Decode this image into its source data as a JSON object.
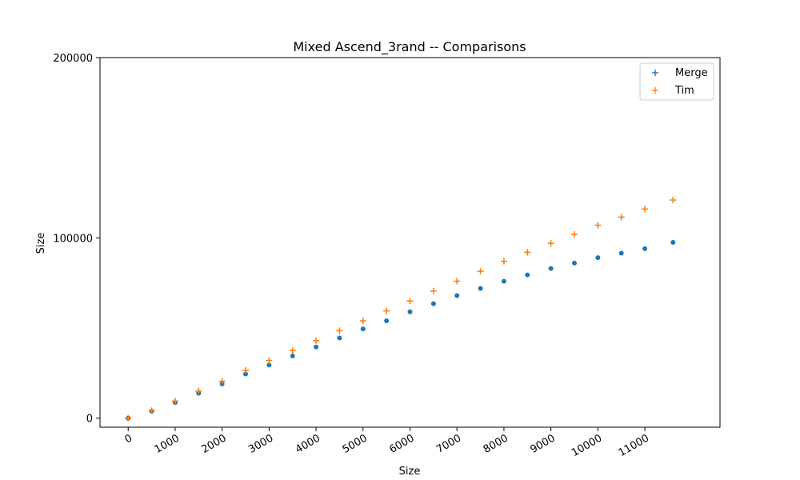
{
  "chart_data": {
    "type": "scatter",
    "title": "Mixed Ascend_3rand -- Comparisons",
    "xlabel": "Size",
    "ylabel": "Size",
    "xlim": [
      -600,
      12600
    ],
    "ylim": [
      -5000,
      200000
    ],
    "x_ticks": [
      0,
      1000,
      2000,
      3000,
      4000,
      5000,
      6000,
      7000,
      8000,
      9000,
      10000,
      11000
    ],
    "x_tick_labels": [
      "0",
      "1000",
      "2000",
      "3000",
      "4000",
      "5000",
      "6000",
      "7000",
      "8000",
      "9000",
      "10000",
      "11000"
    ],
    "y_ticks": [
      0,
      100000,
      200000
    ],
    "y_tick_labels": [
      "0",
      "100000",
      "200000"
    ],
    "grid": false,
    "legend_position": "top-right",
    "series": [
      {
        "name": "Merge",
        "marker": "dot",
        "color": "#1f77b4",
        "points": [
          [
            0,
            0
          ],
          [
            500,
            3900
          ],
          [
            1000,
            8700
          ],
          [
            1500,
            13800
          ],
          [
            2000,
            19000
          ],
          [
            2500,
            24500
          ],
          [
            3000,
            29500
          ],
          [
            3500,
            34500
          ],
          [
            4000,
            39500
          ],
          [
            4500,
            44500
          ],
          [
            5000,
            49500
          ],
          [
            5500,
            54000
          ],
          [
            6000,
            59000
          ],
          [
            6500,
            63500
          ],
          [
            7000,
            68000
          ],
          [
            7500,
            72000
          ],
          [
            8000,
            76000
          ],
          [
            8500,
            79500
          ],
          [
            9000,
            83000
          ],
          [
            9500,
            86000
          ],
          [
            10000,
            89000
          ],
          [
            10500,
            91500
          ],
          [
            11000,
            94000
          ],
          [
            11600,
            97500
          ]
        ]
      },
      {
        "name": "Tim",
        "marker": "plus",
        "color": "#ff7f0e",
        "points": [
          [
            0,
            0
          ],
          [
            500,
            4200
          ],
          [
            1000,
            9500
          ],
          [
            1500,
            15000
          ],
          [
            2000,
            20500
          ],
          [
            2500,
            26500
          ],
          [
            3000,
            32000
          ],
          [
            3500,
            37500
          ],
          [
            4000,
            43000
          ],
          [
            4500,
            48500
          ],
          [
            5000,
            54000
          ],
          [
            5500,
            59500
          ],
          [
            6000,
            65000
          ],
          [
            6500,
            70500
          ],
          [
            7000,
            76000
          ],
          [
            7500,
            81500
          ],
          [
            8000,
            87000
          ],
          [
            8500,
            92000
          ],
          [
            9000,
            97000
          ],
          [
            9500,
            102000
          ],
          [
            10000,
            107000
          ],
          [
            10500,
            111500
          ],
          [
            11000,
            116000
          ],
          [
            11600,
            121000
          ]
        ]
      }
    ]
  }
}
